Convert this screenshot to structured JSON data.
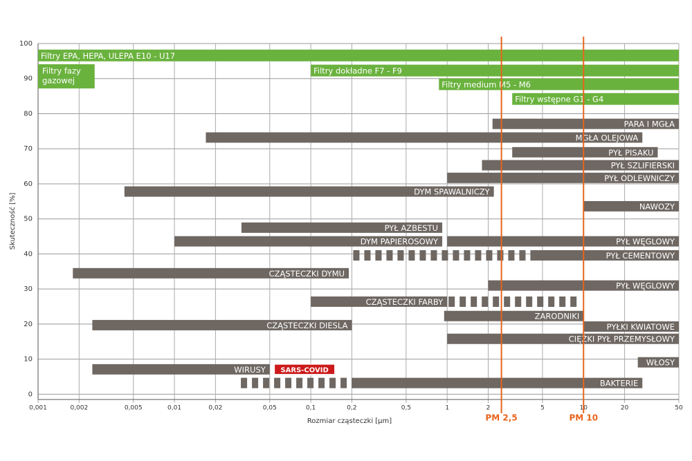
{
  "chart_data": {
    "type": "range-bar",
    "xlabel": "Rozmiar cząsteczki [µm]",
    "ylabel": "Skuteczność [%]",
    "xscale": "log",
    "xlim": [
      0.001,
      50
    ],
    "ylim": [
      -1.5,
      100
    ],
    "grid": true,
    "xticks": [
      {
        "value": 0.001,
        "label": "0,001"
      },
      {
        "value": 0.002,
        "label": "0,002"
      },
      {
        "value": 0.005,
        "label": "0,005"
      },
      {
        "value": 0.01,
        "label": "0,01"
      },
      {
        "value": 0.02,
        "label": "0,02"
      },
      {
        "value": 0.05,
        "label": "0,05"
      },
      {
        "value": 0.1,
        "label": "0,1"
      },
      {
        "value": 0.2,
        "label": "0,2"
      },
      {
        "value": 0.5,
        "label": "0,5"
      },
      1,
      2,
      5,
      10,
      20,
      50
    ],
    "yticks": [
      0,
      10,
      20,
      30,
      40,
      50,
      60,
      70,
      80,
      90,
      100
    ],
    "markers": [
      {
        "label": "PM 2,5",
        "value": 2.5,
        "color": "#e8641b"
      },
      {
        "label": "PM 10",
        "value": 10,
        "color": "#e8641b"
      }
    ],
    "bars": [
      {
        "label": "Filtry EPA, HEPA, ULEPA E10 - U17",
        "x": [
          0.001,
          50
        ],
        "y": 96.6,
        "color": "#6ab23e"
      },
      {
        "lines": [
          "Filtry fazy",
          "gazowej"
        ],
        "x": [
          0.001,
          0.0026
        ],
        "y": [
          87.2,
          94.1
        ],
        "color": "#6ab23e"
      },
      {
        "label": "Filtry dokładne F7 - F9",
        "x": [
          0.1,
          50
        ],
        "y": 92.3,
        "color": "#6ab23e"
      },
      {
        "label": "Filtry medium M5 - M6",
        "x": [
          0.87,
          50
        ],
        "y": 88.4,
        "color": "#6ab23e"
      },
      {
        "label": "Filtry wstępne G1 - G4",
        "x": [
          3,
          50
        ],
        "y": 84.2,
        "color": "#6ab23e"
      },
      {
        "label": "PARA I MGŁA",
        "x": [
          2.15,
          50
        ],
        "y": 77.1,
        "color": "#6e6762"
      },
      {
        "label": "MGŁA OLEJOWA",
        "x": [
          0.017,
          27
        ],
        "y": 73.2,
        "color": "#6e6762"
      },
      {
        "label": "PYŁ PISAKU",
        "x": [
          3,
          35
        ],
        "y": 69.0,
        "color": "#6e6762"
      },
      {
        "label": "PYŁ SZLIFIERSKI",
        "x": [
          1.8,
          50
        ],
        "y": 65.3,
        "color": "#6e6762"
      },
      {
        "label": "PYŁ ODLEWNICZY",
        "x": [
          1,
          50
        ],
        "y": 61.7,
        "color": "#6e6762"
      },
      {
        "label": "DYM SPAWALNICZY",
        "x": [
          0.0043,
          2.2
        ],
        "y": 57.8,
        "color": "#6e6762"
      },
      {
        "label": "NAWOZY",
        "x": [
          10,
          50
        ],
        "y": 53.6,
        "color": "#6e6762"
      },
      {
        "label": "PYŁ AZBESTU",
        "x": [
          0.031,
          0.92
        ],
        "y": 47.5,
        "color": "#6e6762"
      },
      {
        "label": "DYM PAPIEROSOWY",
        "x": [
          0.01,
          0.92
        ],
        "y": 43.6,
        "color": "#6e6762"
      },
      {
        "label": "PYŁ WĘGLOWY",
        "x": [
          1,
          50
        ],
        "y": 43.6,
        "color": "#6e6762"
      },
      {
        "label": "PYŁ CEMENTOWY",
        "x": [
          4.3,
          50
        ],
        "dashed_x": [
          0.2,
          4.3
        ],
        "y": 39.6,
        "color": "#6e6762"
      },
      {
        "label": "CZĄSTECZKI DYMU",
        "x": [
          0.0018,
          0.19
        ],
        "y": 34.5,
        "color": "#6e6762"
      },
      {
        "label": "PYŁ WĘGLOWY",
        "x": [
          2,
          50
        ],
        "y": 31.0,
        "color": "#6e6762"
      },
      {
        "label": "CZĄSTECZKI FARBY",
        "x": [
          0.1,
          1
        ],
        "dashed_x": [
          1,
          9
        ],
        "y": 26.4,
        "color": "#6e6762"
      },
      {
        "label": "ZARODNIKI",
        "x": [
          0.95,
          10
        ],
        "y": 22.3,
        "color": "#6e6762"
      },
      {
        "label": "CZĄSTECZKI DIESLA",
        "x": [
          0.0025,
          0.2
        ],
        "y": 19.7,
        "color": "#6e6762"
      },
      {
        "label": "PYŁKI KWIATOWE",
        "x": [
          10,
          50
        ],
        "y": 19.3,
        "color": "#6e6762"
      },
      {
        "label": "CIĘŻKI PYŁ PRZEMYSŁOWY",
        "x": [
          1,
          50
        ],
        "y": 15.8,
        "color": "#6e6762"
      },
      {
        "label": "WŁOSY",
        "x": [
          25,
          50
        ],
        "y": 9.1,
        "color": "#6e6762"
      },
      {
        "label": "WIRUSY",
        "x": [
          0.0025,
          0.05
        ],
        "y": 7.1,
        "color": "#6e6762"
      },
      {
        "label": "SARS-COVID",
        "x": [
          0.054,
          0.15
        ],
        "y": 7.1,
        "color": "#cc1a1a"
      },
      {
        "label": "BAKTERIE",
        "x": [
          0.2,
          27
        ],
        "dashed_x": [
          0.03,
          0.2
        ],
        "y": 3.2,
        "color": "#6e6762"
      }
    ]
  }
}
